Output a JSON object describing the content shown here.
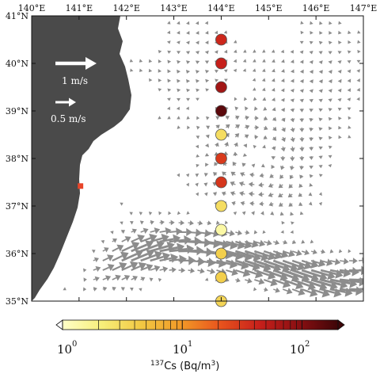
{
  "map": {
    "lon_labels": [
      "140°E",
      "141°E",
      "142°E",
      "143°E",
      "144°E",
      "145°E",
      "146°E",
      "147°E"
    ],
    "lat_labels": [
      "41°N",
      "40°N",
      "39°N",
      "38°N",
      "37°N",
      "36°N",
      "35°N"
    ],
    "lon_range": [
      140,
      147
    ],
    "lat_range": [
      35,
      41
    ],
    "land_color": "#4a4a4a",
    "arrow_color": "#8c8c8c",
    "site_marker_color": "#e8452a"
  },
  "velocity_scale": {
    "labels": [
      "1 m/s",
      "0.5 m/s"
    ],
    "speeds_mps": [
      1.0,
      0.5
    ]
  },
  "stations": [
    {
      "lat": 40.5,
      "cs137": 40
    },
    {
      "lat": 40.0,
      "cs137": 45
    },
    {
      "lat": 39.5,
      "cs137": 70
    },
    {
      "lat": 39.0,
      "cs137": 150
    },
    {
      "lat": 38.5,
      "cs137": 3
    },
    {
      "lat": 38.0,
      "cs137": 30
    },
    {
      "lat": 37.5,
      "cs137": 32
    },
    {
      "lat": 37.0,
      "cs137": 3
    },
    {
      "lat": 36.5,
      "cs137": 1.4
    },
    {
      "lat": 36.0,
      "cs137": 4
    },
    {
      "lat": 35.5,
      "cs137": 4
    },
    {
      "lat": 35.0,
      "cs137": 3.5
    }
  ],
  "station_lon": 144,
  "site": {
    "lon": 141.03,
    "lat": 37.42
  },
  "colorbar": {
    "ticks": [
      "10",
      "10",
      "10"
    ],
    "exponents": [
      "0",
      "1",
      "2"
    ],
    "title_pre": "",
    "title_sup": "137",
    "title_mid": "Cs (Bq/m",
    "title_sup2": "3",
    "title_end": ")",
    "range": [
      1,
      200
    ],
    "colors": [
      "#ffffc8",
      "#f7ef7a",
      "#f2c843",
      "#f29a27",
      "#e8541d",
      "#c8201b",
      "#8a0f12",
      "#3e0608"
    ]
  }
}
